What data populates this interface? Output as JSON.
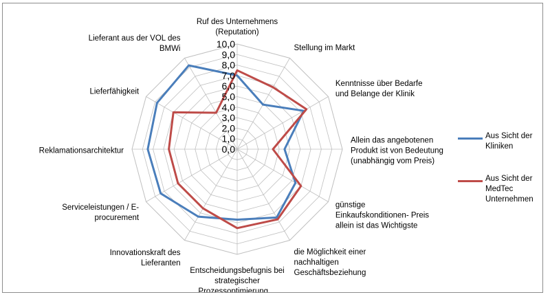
{
  "chart_data": {
    "type": "radar",
    "axis_min": 0,
    "axis_max": 10,
    "tick_step": 1,
    "ticks": [
      "0,0",
      "1,0",
      "2,0",
      "3,0",
      "4,0",
      "5,0",
      "6,0",
      "7,0",
      "8,0",
      "9,0",
      "10,0"
    ],
    "categories": [
      "Ruf des Unternehmens (Reputation)",
      "Stellung im Markt",
      "Kenntnisse über Bedarfe und Belange der Klinik",
      "Allein das angebotenen Produkt ist von Bedeutung (unabhängig vom Preis)",
      "günstige Einkaufskonditionen- Preis allein ist das Wichtigste",
      "die Möglichkeit einer nachhaltigen Geschäftsbeziehung",
      "Entscheidungsbefugnis bei strategischer Prozessoptimierung…",
      "Innovationskraft des Lieferanten",
      "Serviceleistungen / E-procurement",
      "Reklamationsarchitektur",
      "Lieferfähigkeit",
      "Lieferant aus der VOL des BMWi"
    ],
    "category_lines": [
      [
        "Ruf des Unternehmens",
        "(Reputation)"
      ],
      [
        "Stellung im Markt"
      ],
      [
        "Kenntnisse über Bedarfe",
        "und Belange der Klinik"
      ],
      [
        "Allein das angebotenen",
        "Produkt ist von Bedeutung",
        "(unabhängig vom Preis)"
      ],
      [
        "günstige",
        "Einkaufskonditionen- Preis",
        "allein ist das Wichtigste"
      ],
      [
        "die Möglichkeit einer",
        "nachhaltigen",
        "Geschäftsbeziehung"
      ],
      [
        "Entscheidungsbefugnis bei",
        "strategischer",
        "Prozessoptimierung…"
      ],
      [
        "Innovationskraft des",
        "Lieferanten"
      ],
      [
        "Serviceleistungen / E-",
        "procurement"
      ],
      [
        "Reklamationsarchitektur"
      ],
      [
        "Lieferfähigkeit"
      ],
      [
        "Lieferant aus der VOL des",
        "BMWi"
      ]
    ],
    "series": [
      {
        "name": "Aus Sicht der Kliniken",
        "color": "#4a7ebb",
        "values": [
          7.0,
          4.9,
          7.3,
          4.5,
          6.4,
          7.5,
          6.7,
          7.4,
          8.4,
          8.5,
          8.8,
          9.2
        ]
      },
      {
        "name": "Aus Sicht der MedTec Unternehmen",
        "color": "#be4b48",
        "values": [
          7.5,
          6.8,
          7.6,
          3.4,
          7.0,
          7.7,
          7.5,
          6.5,
          6.5,
          6.5,
          7.0,
          4.0
        ]
      }
    ],
    "grid": true,
    "legend_position": "right"
  },
  "legend": [
    {
      "label": "Aus Sicht der Kliniken",
      "color": "#4a7ebb"
    },
    {
      "label": "Aus Sicht der MedTec Unternehmen",
      "color": "#be4b48"
    }
  ]
}
